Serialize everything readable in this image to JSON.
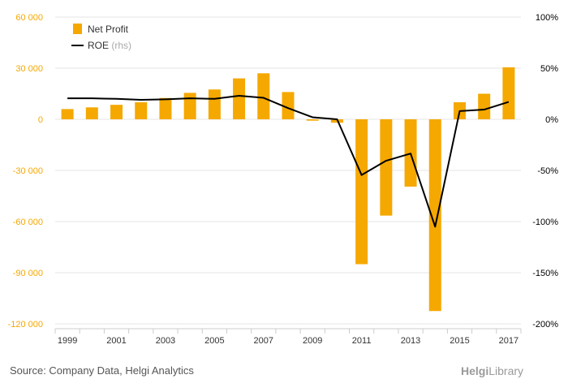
{
  "chart_data": {
    "type": "bar",
    "categories": [
      "1999",
      "2000",
      "2001",
      "2002",
      "2003",
      "2004",
      "2005",
      "2006",
      "2007",
      "2008",
      "2009",
      "2010",
      "2011",
      "2012",
      "2013",
      "2014",
      "2015",
      "2016",
      "2017"
    ],
    "x_tick_labels": [
      "1999",
      "2001",
      "2003",
      "2005",
      "2007",
      "2009",
      "2011",
      "2013",
      "2015",
      "2017"
    ],
    "series": [
      {
        "name": "Net Profit",
        "axis": "left",
        "chart": "bar",
        "color": "#f5a800",
        "values": [
          6000,
          7000,
          8500,
          10000,
          12500,
          15500,
          17500,
          24000,
          27000,
          16000,
          -800,
          -2000,
          -85000,
          -56500,
          -39500,
          -112500,
          10000,
          15000,
          30500
        ]
      },
      {
        "name": "ROE",
        "axis": "right",
        "chart": "line",
        "color": "#000000",
        "values": [
          20.5,
          20.5,
          20,
          19,
          19.5,
          20.5,
          20,
          23,
          21,
          11,
          2,
          0,
          -54.5,
          -40.5,
          -33.5,
          -105,
          8,
          9.5,
          17
        ]
      }
    ],
    "legend": [
      {
        "label": "Net Profit",
        "suffix": ""
      },
      {
        "label": "ROE",
        "suffix": "(rhs)"
      }
    ],
    "legend_position": "top-left",
    "ylim_left": [
      -120000,
      60000
    ],
    "yticks_left": [
      60000,
      30000,
      0,
      -30000,
      -60000,
      -90000,
      -120000
    ],
    "ytick_labels_left": [
      "60 000",
      "30 000",
      "0",
      "-30 000",
      "-60 000",
      "-90 000",
      "-120 000"
    ],
    "ylim_right": [
      -200,
      100
    ],
    "yticks_right": [
      100,
      50,
      0,
      -50,
      -100,
      -150,
      -200
    ],
    "ytick_labels_right": [
      "100%",
      "50%",
      "0%",
      "-50%",
      "-100%",
      "-150%",
      "-200%"
    ],
    "grid": "horizontal",
    "colors": {
      "left_axis_text": "#f5a800",
      "grid": "#e6e6e6",
      "right_axis_text": "#000000"
    }
  },
  "footer": {
    "source": "Source: Company Data, Helgi Analytics",
    "brand_helgi": "Helgi",
    "brand_library": "Library"
  }
}
